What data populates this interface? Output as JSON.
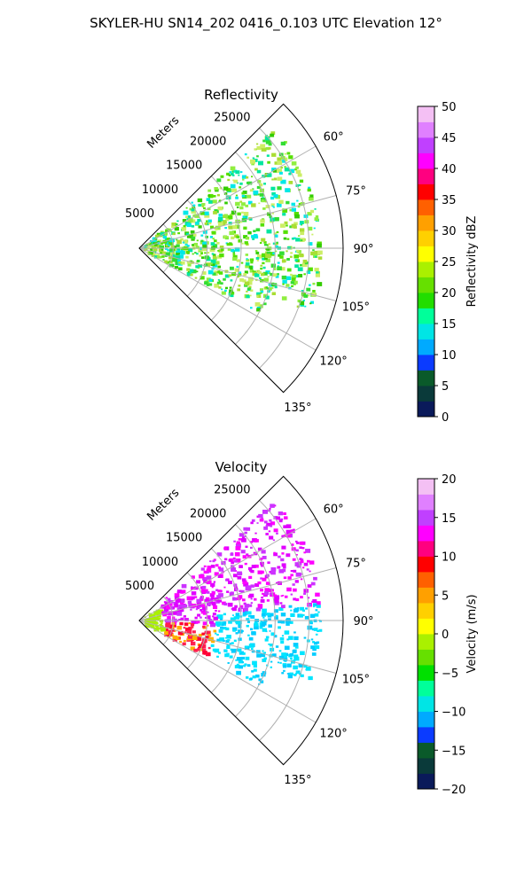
{
  "title": "SKYLER-HU  SN14_202  0416_0.103 UTC Elevation 12°",
  "chart_data": [
    {
      "type": "heatmap",
      "projection": "polar-sector",
      "title": "Reflectivity",
      "range_label": "Meters",
      "range_ticks": [
        5000,
        10000,
        15000,
        20000,
        25000
      ],
      "range_max": 30000,
      "azimuth_range_deg": [
        45,
        135
      ],
      "azimuth_ticks": [
        "60°",
        "75°",
        "90°",
        "105°",
        "120°",
        "135°"
      ],
      "azimuth_tick_values": [
        60,
        75,
        90,
        105,
        120,
        135
      ],
      "colorbar": {
        "label": "Reflectivity dBZ",
        "min": 0,
        "max": 50,
        "ticks": [
          "0",
          "5",
          "10",
          "15",
          "20",
          "25",
          "30",
          "35",
          "40",
          "45",
          "50"
        ],
        "colors": [
          "#0a1a5a",
          "#0a3a3a",
          "#0a5a2a",
          "#0b3bff",
          "#00aaff",
          "#00e5e5",
          "#00ff9a",
          "#22dd00",
          "#66e000",
          "#aaf000",
          "#ffff00",
          "#ffd000",
          "#ffa000",
          "#ff6000",
          "#ff0000",
          "#ff0080",
          "#ff00ff",
          "#c040ff",
          "#e080ff",
          "#f4c0f4"
        ]
      },
      "field_palette": [
        "#55e000",
        "#33dd33",
        "#00e6a0",
        "#00e8e8",
        "#33cc00",
        "#90ee40",
        "#aadd33",
        "#ccee66"
      ]
    },
    {
      "type": "heatmap",
      "projection": "polar-sector",
      "title": "Velocity",
      "range_label": "Meters",
      "range_ticks": [
        5000,
        10000,
        15000,
        20000,
        25000
      ],
      "range_max": 30000,
      "azimuth_range_deg": [
        45,
        135
      ],
      "azimuth_ticks": [
        "60°",
        "75°",
        "90°",
        "105°",
        "120°",
        "135°"
      ],
      "azimuth_tick_values": [
        60,
        75,
        90,
        105,
        120,
        135
      ],
      "colorbar": {
        "label": "Velocity (m/s)",
        "min": -20,
        "max": 20,
        "ticks": [
          "−20",
          "−15",
          "−10",
          "−5",
          "0",
          "5",
          "10",
          "15",
          "20"
        ],
        "colors": [
          "#0a1a5a",
          "#0a3a3a",
          "#0a5a2a",
          "#0b3bff",
          "#00aaff",
          "#00e5e5",
          "#00ff9a",
          "#00e000",
          "#66e000",
          "#aaf000",
          "#ffff00",
          "#ffd000",
          "#ffa000",
          "#ff6000",
          "#ff0000",
          "#ff0080",
          "#ff00ff",
          "#c040ff",
          "#e080ff",
          "#f4c0f4"
        ]
      },
      "field_palette": [
        "#ff00ff",
        "#e000ff",
        "#cc33ff",
        "#00e5ff",
        "#00ccff",
        "#ff0033",
        "#ff2050",
        "#ffb000",
        "#aaf000"
      ]
    }
  ]
}
